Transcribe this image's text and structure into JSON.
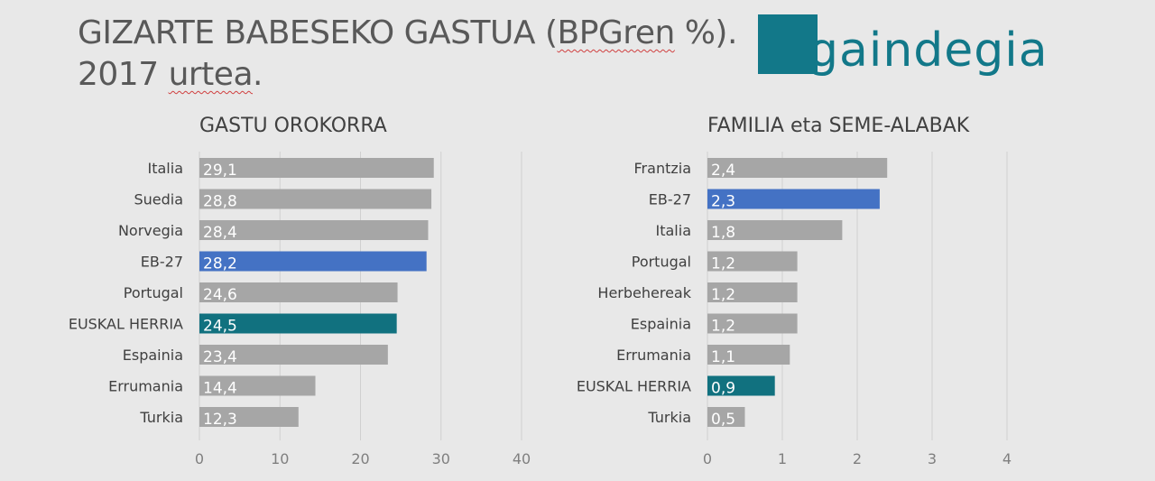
{
  "header": {
    "title_line1_a": "GIZARTE BABESEKO GASTUA (",
    "title_line1_b": "BPGren",
    "title_line1_c": " %).",
    "title_line2_a": "2017 ",
    "title_line2_b": "urtea",
    "title_line2_c": "."
  },
  "logo": {
    "text": "gaindegia",
    "color": "#127889"
  },
  "colors": {
    "default": "#a6a6a6",
    "eu": "#4472c4",
    "eh": "#11717f",
    "grid": "#d0d0d0",
    "label": "#404040"
  },
  "chart_data": [
    {
      "type": "bar",
      "orientation": "horizontal",
      "title": "GASTU OROKORRA",
      "categories": [
        "Italia",
        "Suedia",
        "Norvegia",
        "EB-27",
        "Portugal",
        "EUSKAL HERRIA",
        "Espainia",
        "Errumania",
        "Turkia"
      ],
      "values": [
        29.1,
        28.8,
        28.4,
        28.2,
        24.6,
        24.5,
        23.4,
        14.4,
        12.3
      ],
      "value_labels": [
        "29,1",
        "28,8",
        "28,4",
        "28,2",
        "24,6",
        "24,5",
        "23,4",
        "14,4",
        "12,3"
      ],
      "highlight": {
        "EB-27": "eu",
        "EUSKAL HERRIA": "eh"
      },
      "xlim": [
        0,
        40
      ],
      "ticks": [
        0,
        10,
        20,
        30,
        40
      ],
      "grid": true
    },
    {
      "type": "bar",
      "orientation": "horizontal",
      "title": "FAMILIA eta SEME-ALABAK",
      "categories": [
        "Frantzia",
        "EB-27",
        "Italia",
        "Portugal",
        "Herbehereak",
        "Espainia",
        "Errumania",
        "EUSKAL HERRIA",
        "Turkia"
      ],
      "values": [
        2.4,
        2.3,
        1.8,
        1.2,
        1.2,
        1.2,
        1.1,
        0.9,
        0.5
      ],
      "value_labels": [
        "2,4",
        "2,3",
        "1,8",
        "1,2",
        "1,2",
        "1,2",
        "1,1",
        "0,9",
        "0,5"
      ],
      "highlight": {
        "EB-27": "eu",
        "EUSKAL HERRIA": "eh"
      },
      "xlim": [
        0,
        4
      ],
      "ticks": [
        0,
        1,
        2,
        3,
        4
      ],
      "grid": true
    }
  ]
}
